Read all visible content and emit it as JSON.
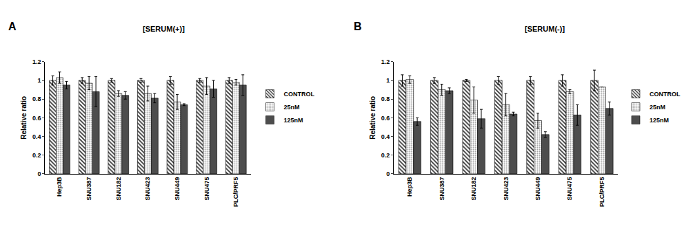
{
  "chart_data": [
    {
      "type": "bar",
      "title": "[SERUM(+)]",
      "annotations": [
        "A"
      ],
      "y_label": "Relative ratio",
      "categories": [
        "Hep3B",
        "SNU387",
        "SNU182",
        "SNU423",
        "SNU449",
        "SNU475",
        "PLC/PRF5"
      ],
      "series": [
        {
          "name": "CONTROL",
          "color": "#333333",
          "marker": "hatch",
          "values": [
            1.0,
            1.0,
            1.0,
            1.0,
            1.0,
            1.0,
            1.0
          ],
          "errors": [
            0.05,
            0.03,
            0.02,
            0.02,
            0.04,
            0.02,
            0.03
          ]
        },
        {
          "name": "25nM",
          "color": "#999999",
          "marker": "dots",
          "values": [
            1.03,
            0.97,
            0.86,
            0.86,
            0.77,
            0.94,
            0.98
          ],
          "errors": [
            0.06,
            0.07,
            0.03,
            0.08,
            0.08,
            0.09,
            0.03
          ]
        },
        {
          "name": "125nM",
          "color": "#4d4d4d",
          "marker": "solid",
          "values": [
            0.95,
            0.88,
            0.84,
            0.81,
            0.74,
            0.91,
            0.95
          ],
          "errors": [
            0.04,
            0.16,
            0.04,
            0.05,
            0.01,
            0.09,
            0.11
          ]
        }
      ],
      "ylim": [
        0,
        1.2
      ],
      "yticks": [
        0,
        0.2,
        0.4,
        0.6,
        0.8,
        1,
        1.2
      ],
      "grid": false,
      "legend": "right"
    },
    {
      "type": "bar",
      "title": "[SERUM(-)]",
      "annotations": [
        "B"
      ],
      "y_label": "Relative ratio",
      "categories": [
        "Hep3B",
        "SNU387",
        "SNU182",
        "SNU423",
        "SNU449",
        "SNU475",
        "PLC/PRF5"
      ],
      "series": [
        {
          "name": "CONTROL",
          "color": "#333333",
          "marker": "hatch",
          "values": [
            1.0,
            1.0,
            1.0,
            1.0,
            1.0,
            1.0,
            1.0
          ],
          "errors": [
            0.06,
            0.03,
            0.01,
            0.04,
            0.04,
            0.06,
            0.11
          ]
        },
        {
          "name": "25nM",
          "color": "#999999",
          "marker": "dots",
          "values": [
            1.01,
            0.9,
            0.79,
            0.74,
            0.57,
            0.88,
            0.93
          ],
          "errors": [
            0.04,
            0.06,
            0.14,
            0.12,
            0.08,
            0.02,
            0
          ]
        },
        {
          "name": "125nM",
          "color": "#4d4d4d",
          "marker": "solid",
          "values": [
            0.56,
            0.89,
            0.59,
            0.64,
            0.42,
            0.63,
            0.7
          ],
          "errors": [
            0.04,
            0.03,
            0.1,
            0.02,
            0.03,
            0.11,
            0.07
          ]
        }
      ],
      "ylim": [
        0,
        1.2
      ],
      "yticks": [
        0,
        0.2,
        0.4,
        0.6,
        0.8,
        1,
        1.2
      ],
      "grid": false,
      "legend": "right"
    }
  ]
}
